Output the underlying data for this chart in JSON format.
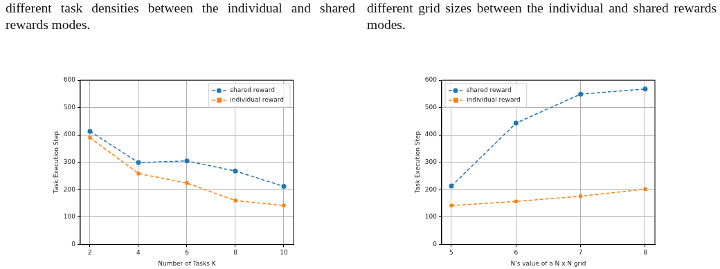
{
  "chart_data": [
    {
      "type": "line",
      "annotations": [
        "different task densities between the individual and shared rewards modes."
      ],
      "xlabel": "Number of Tasks K",
      "ylabel": "Task Execution Step",
      "x": [
        2,
        4,
        6,
        8,
        10
      ],
      "xlim": [
        1.6,
        10.4
      ],
      "xticks": [
        2,
        4,
        6,
        8,
        10
      ],
      "ylim": [
        0,
        600
      ],
      "yticks": [
        0,
        100,
        200,
        300,
        400,
        500,
        600
      ],
      "grid": true,
      "legend": "top right",
      "line_style": "dashed",
      "series": [
        {
          "name": "shared reward",
          "color": "#1f77b4",
          "marker": "circle",
          "values": [
            413,
            299,
            305,
            268,
            212
          ]
        },
        {
          "name": "individual reward",
          "color": "#ff7f0e",
          "marker": "square",
          "values": [
            390,
            259,
            224,
            160,
            142
          ]
        }
      ]
    },
    {
      "type": "line",
      "annotations": [
        "different grid sizes between the individual and shared rewards modes."
      ],
      "xlabel": "N's value of a N x N grid",
      "ylabel": "Task Execution Step",
      "x": [
        5,
        6,
        7,
        8
      ],
      "xlim": [
        4.85,
        8.15
      ],
      "xticks": [
        5,
        6,
        7,
        8
      ],
      "ylim": [
        0,
        600
      ],
      "yticks": [
        0,
        100,
        200,
        300,
        400,
        500,
        600
      ],
      "grid": true,
      "legend": "top left",
      "line_style": "dashed",
      "series": [
        {
          "name": "shared reward",
          "color": "#1f77b4",
          "marker": "circle",
          "values": [
            213,
            443,
            549,
            568
          ]
        },
        {
          "name": "individual reward",
          "color": "#ff7f0e",
          "marker": "square",
          "values": [
            142,
            157,
            176,
            202
          ]
        }
      ]
    }
  ]
}
